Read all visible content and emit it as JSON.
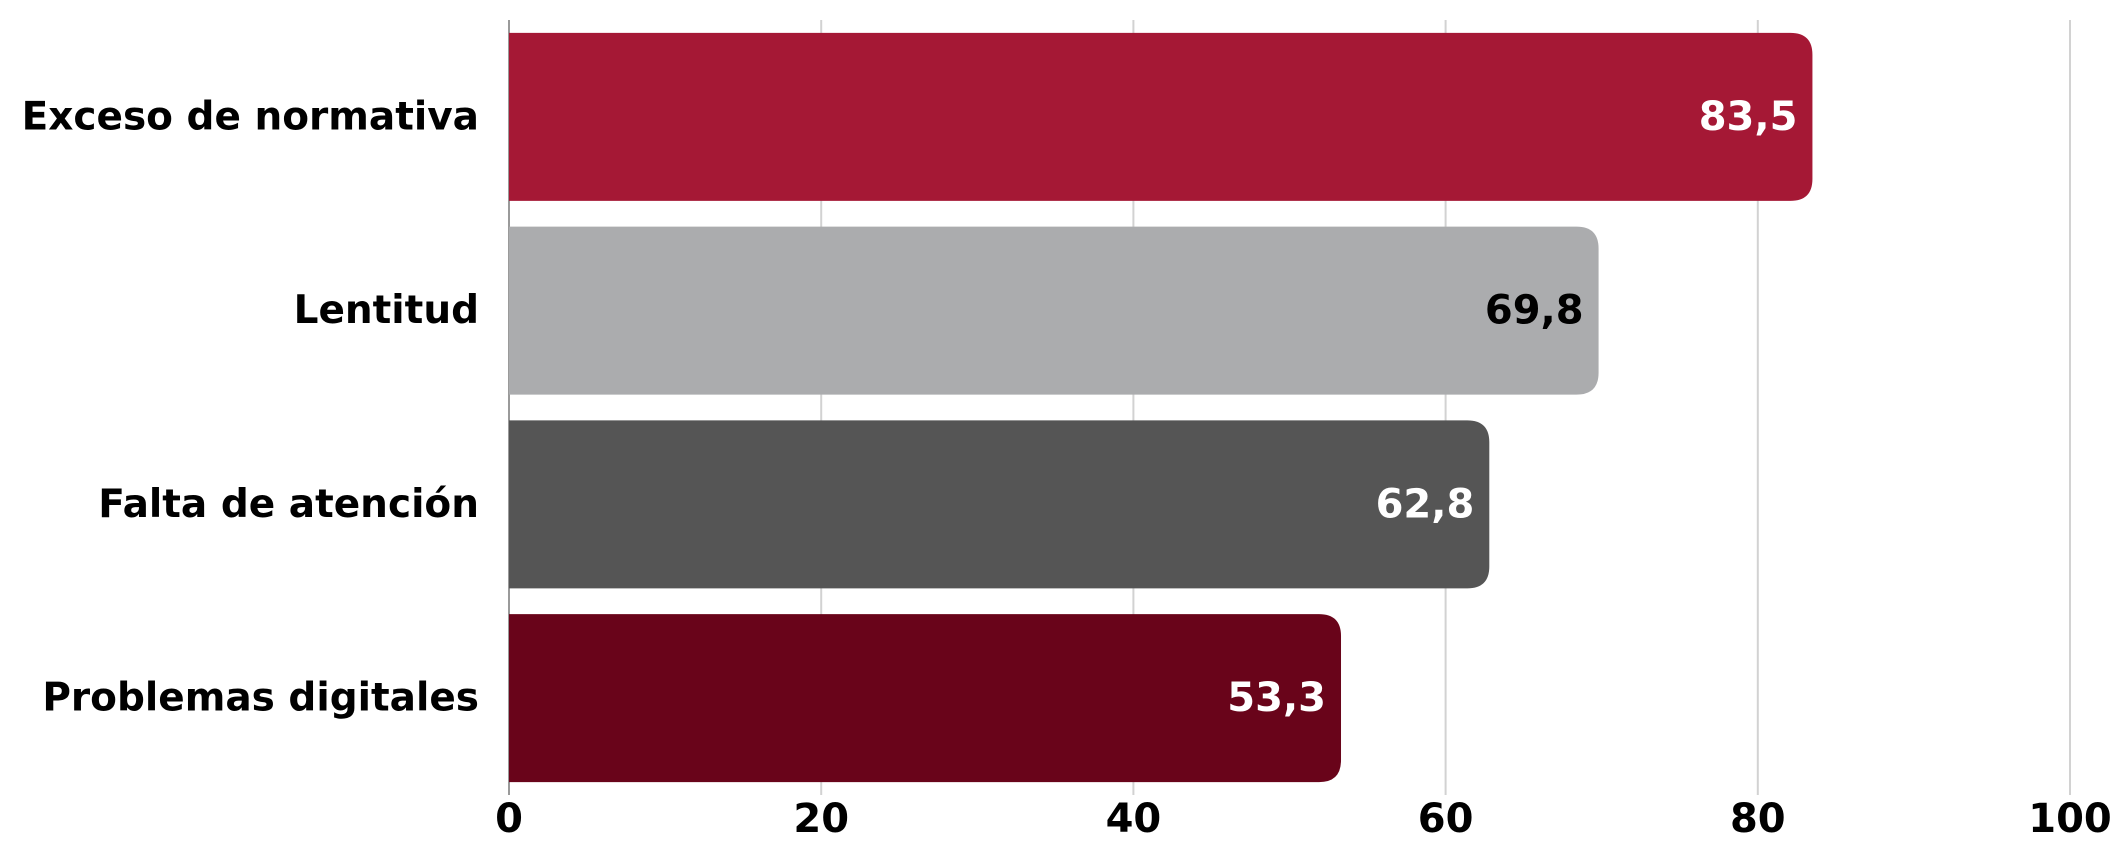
{
  "chart_data": {
    "type": "bar",
    "orientation": "horizontal",
    "categories": [
      "Exceso de normativa",
      "Lentitud",
      "Falta de atención",
      "Problemas digitales"
    ],
    "values": [
      83.5,
      69.8,
      62.8,
      53.3
    ],
    "value_labels": [
      "83,5",
      "69,8",
      "62,8",
      "53,3"
    ],
    "bar_colors": [
      "#A51835",
      "#ABACAE",
      "#555555",
      "#69041A"
    ],
    "value_label_colors": [
      "#FFFFFF",
      "#000000",
      "#FFFFFF",
      "#FFFFFF"
    ],
    "xlim": [
      0,
      100
    ],
    "x_ticks": [
      0,
      20,
      40,
      60,
      80,
      100
    ],
    "x_tick_labels": [
      "0",
      "20",
      "40",
      "60",
      "80",
      "100"
    ],
    "grid": "vertical",
    "title": "",
    "xlabel": "",
    "ylabel": ""
  }
}
